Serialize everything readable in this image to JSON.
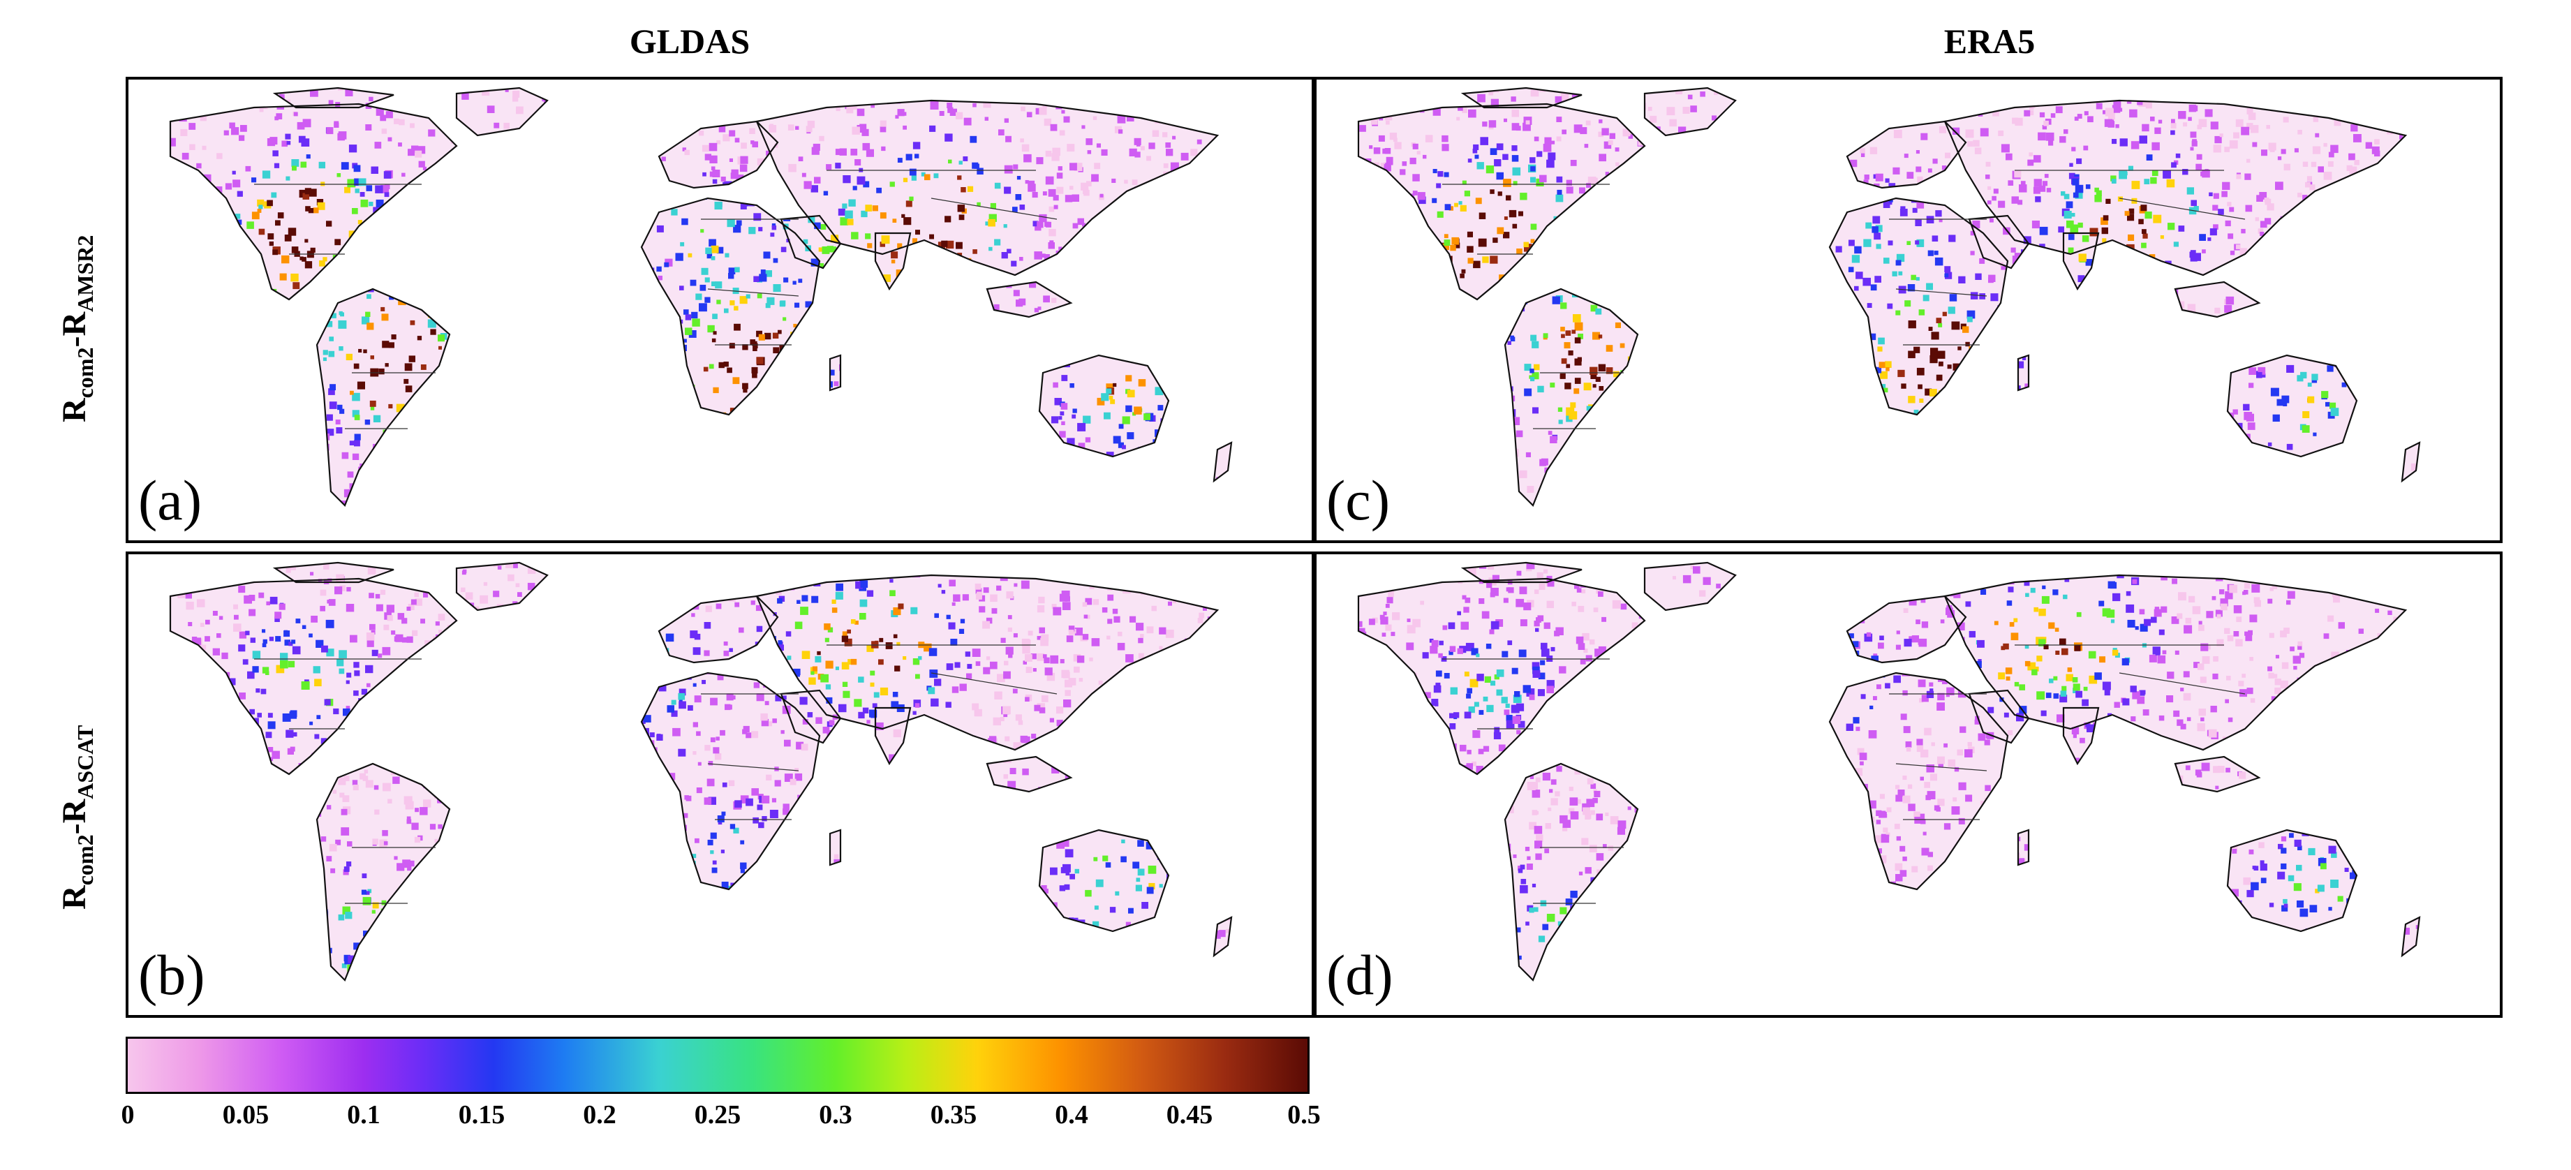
{
  "columns": {
    "left_title": "GLDAS",
    "right_title": "ERA5"
  },
  "rows": {
    "top": {
      "base": "R",
      "sub1": "com2",
      "mid": "-R",
      "sub2": "AMSR2"
    },
    "bottom": {
      "base": "R",
      "sub1": "com2",
      "mid": "-R",
      "sub2": "ASCAT"
    }
  },
  "panels": {
    "a": {
      "tag": "(a)"
    },
    "b": {
      "tag": "(b)"
    },
    "c": {
      "tag": "(c)"
    },
    "d": {
      "tag": "(d)"
    }
  },
  "colorbar": {
    "ticks": [
      "0",
      "0.05",
      "0.1",
      "0.15",
      "0.2",
      "0.25",
      "0.3",
      "0.35",
      "0.4",
      "0.45",
      "0.5"
    ],
    "range": [
      0,
      0.5
    ],
    "colors": [
      "#f7c6ec",
      "#cf5cf3",
      "#6b2df7",
      "#2438f2",
      "#3ad1d2",
      "#63ef2a",
      "#ffd20b",
      "#fd9200",
      "#9a2b11",
      "#5b0b05"
    ]
  }
}
